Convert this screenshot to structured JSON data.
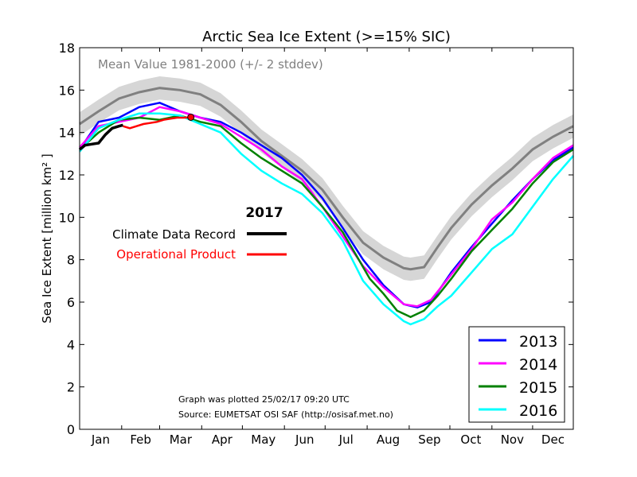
{
  "chart_data": {
    "type": "line",
    "title": "Arctic Sea Ice Extent (>=15% SIC)",
    "xlabel": "",
    "ylabel": "Sea Ice Extent [million km² ]",
    "ylim": [
      0,
      18
    ],
    "yticks": [
      0,
      2,
      4,
      6,
      8,
      10,
      12,
      14,
      16,
      18
    ],
    "months": [
      "Jan",
      "Feb",
      "Mar",
      "Apr",
      "May",
      "Jun",
      "Jul",
      "Aug",
      "Sep",
      "Oct",
      "Nov",
      "Dec"
    ],
    "day_of_year_range": [
      1,
      365
    ],
    "mean_label": "Mean Value 1981-2000 (+/- 2 stddev)",
    "mean": {
      "days": [
        1,
        15,
        30,
        45,
        60,
        75,
        90,
        105,
        120,
        135,
        150,
        165,
        180,
        195,
        210,
        225,
        240,
        245,
        255,
        265,
        275,
        290,
        305,
        320,
        335,
        350,
        365
      ],
      "values": [
        14.4,
        15.0,
        15.6,
        15.9,
        16.1,
        16.0,
        15.8,
        15.3,
        14.5,
        13.6,
        12.9,
        12.2,
        11.3,
        10.0,
        8.8,
        8.1,
        7.6,
        7.55,
        7.65,
        8.6,
        9.5,
        10.6,
        11.5,
        12.3,
        13.2,
        13.8,
        14.3
      ],
      "band": 0.55
    },
    "year_label": "2017",
    "record_labels": [
      "Climate Data Record",
      "Operational Product"
    ],
    "records": [
      {
        "name": "Climate Data Record",
        "color": "#000000",
        "days": [
          1,
          5,
          10,
          15,
          20,
          25,
          30,
          33
        ],
        "values": [
          13.2,
          13.4,
          13.45,
          13.5,
          13.9,
          14.2,
          14.3,
          14.35
        ]
      },
      {
        "name": "Operational Product",
        "color": "#ff0000",
        "days": [
          33,
          38,
          43,
          48,
          53,
          58,
          63,
          68,
          73,
          78,
          83
        ],
        "values": [
          14.3,
          14.2,
          14.3,
          14.4,
          14.45,
          14.5,
          14.6,
          14.65,
          14.7,
          14.7,
          14.72
        ]
      }
    ],
    "series": [
      {
        "name": "2013",
        "color": "#0000ff",
        "days": [
          1,
          15,
          30,
          45,
          60,
          75,
          90,
          105,
          120,
          135,
          150,
          165,
          180,
          195,
          210,
          225,
          240,
          250,
          260,
          275,
          290,
          305,
          320,
          335,
          350,
          365
        ],
        "values": [
          13.2,
          14.5,
          14.7,
          15.2,
          15.4,
          15.0,
          14.7,
          14.5,
          14.0,
          13.4,
          12.8,
          12.0,
          10.9,
          9.5,
          8.0,
          6.8,
          5.9,
          5.75,
          6.0,
          7.4,
          8.6,
          9.7,
          10.8,
          11.8,
          12.7,
          13.3
        ]
      },
      {
        "name": "2014",
        "color": "#ff00ff",
        "days": [
          1,
          15,
          30,
          45,
          60,
          75,
          90,
          105,
          120,
          135,
          150,
          165,
          180,
          195,
          210,
          225,
          240,
          250,
          260,
          275,
          290,
          305,
          320,
          335,
          350,
          365
        ],
        "values": [
          13.3,
          14.3,
          14.5,
          14.7,
          15.2,
          15.0,
          14.7,
          14.4,
          13.8,
          13.2,
          12.4,
          11.8,
          10.5,
          9.1,
          7.7,
          6.7,
          5.9,
          5.8,
          6.1,
          7.3,
          8.5,
          9.9,
          10.7,
          11.8,
          12.8,
          13.4
        ]
      },
      {
        "name": "2015",
        "color": "#008000",
        "days": [
          1,
          15,
          30,
          45,
          60,
          75,
          90,
          105,
          120,
          135,
          150,
          165,
          180,
          195,
          205,
          215,
          225,
          235,
          245,
          255,
          265,
          275,
          290,
          305,
          320,
          335,
          350,
          365
        ],
        "values": [
          13.2,
          14.0,
          14.6,
          14.7,
          14.6,
          14.8,
          14.5,
          14.3,
          13.5,
          12.8,
          12.2,
          11.6,
          10.5,
          9.3,
          8.2,
          7.1,
          6.4,
          5.6,
          5.3,
          5.6,
          6.3,
          7.1,
          8.4,
          9.4,
          10.4,
          11.6,
          12.6,
          13.2
        ]
      },
      {
        "name": "2016",
        "color": "#00ffff",
        "days": [
          1,
          15,
          30,
          45,
          60,
          75,
          90,
          105,
          120,
          135,
          150,
          165,
          180,
          195,
          210,
          225,
          240,
          245,
          255,
          265,
          275,
          290,
          305,
          320,
          335,
          350,
          365
        ],
        "values": [
          13.1,
          14.2,
          14.6,
          14.9,
          14.9,
          14.8,
          14.4,
          14.0,
          13.0,
          12.2,
          11.6,
          11.1,
          10.2,
          8.9,
          7.0,
          5.9,
          5.1,
          4.95,
          5.2,
          5.8,
          6.3,
          7.4,
          8.5,
          9.2,
          10.5,
          11.8,
          12.9
        ]
      }
    ],
    "legend_position": "bottom-right",
    "footnote_1": "Graph was plotted 25/02/17 09:20 UTC",
    "footnote_2": "Source: EUMETSAT OSI SAF (http://osisaf.met.no)",
    "colors": {
      "mean": "#808080",
      "band": "#d6d6d6",
      "mean_label": "#808080",
      "operational_label": "#ff0000"
    }
  }
}
